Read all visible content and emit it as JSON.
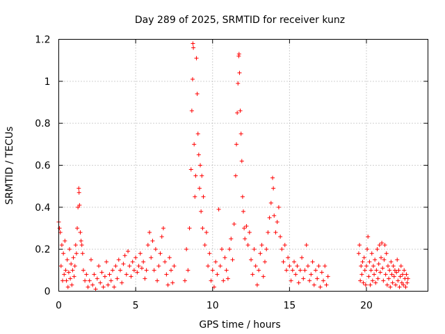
{
  "chart_data": {
    "type": "scatter",
    "title": "Day 289 of 2025, SRMTID for receiver kunz",
    "xlabel": "GPS time / hours",
    "ylabel": "SRMTID / TECUs",
    "xlim": [
      0,
      24
    ],
    "ylim": [
      0,
      1.2
    ],
    "x_ticks": [
      0,
      5,
      10,
      15,
      20
    ],
    "x_tick_labels": [
      "0",
      "5",
      "10",
      "15",
      "20"
    ],
    "y_ticks": [
      0,
      0.2,
      0.4,
      0.6,
      0.8,
      1.0,
      1.2
    ],
    "y_tick_labels": [
      "0",
      "0.2",
      "0.4",
      "0.6",
      "0.8",
      "1",
      "1.2"
    ],
    "grid": true,
    "marker": "+",
    "color": "#ff0000",
    "series": [
      {
        "name": "SRMTID",
        "points": [
          [
            0.0,
            0.33
          ],
          [
            0.05,
            0.3
          ],
          [
            0.1,
            0.28
          ],
          [
            0.15,
            0.12
          ],
          [
            0.2,
            0.22
          ],
          [
            0.25,
            0.05
          ],
          [
            0.3,
            0.18
          ],
          [
            0.35,
            0.08
          ],
          [
            0.4,
            0.24
          ],
          [
            0.45,
            0.1
          ],
          [
            0.5,
            0.05
          ],
          [
            0.55,
            0.15
          ],
          [
            0.6,
            0.02
          ],
          [
            0.65,
            0.09
          ],
          [
            0.7,
            0.2
          ],
          [
            0.75,
            0.06
          ],
          [
            0.8,
            0.13
          ],
          [
            0.85,
            0.03
          ],
          [
            0.9,
            0.1
          ],
          [
            0.95,
            0.16
          ],
          [
            1.0,
            0.07
          ],
          [
            1.05,
            0.12
          ],
          [
            1.1,
            0.22
          ],
          [
            1.15,
            0.18
          ],
          [
            1.2,
            0.3
          ],
          [
            1.25,
            0.4
          ],
          [
            1.3,
            0.49
          ],
          [
            1.32,
            0.47
          ],
          [
            1.35,
            0.41
          ],
          [
            1.4,
            0.28
          ],
          [
            1.45,
            0.24
          ],
          [
            1.5,
            0.22
          ],
          [
            1.55,
            0.18
          ],
          [
            1.6,
            0.1
          ],
          [
            1.7,
            0.05
          ],
          [
            1.8,
            0.08
          ],
          [
            1.9,
            0.02
          ],
          [
            2.0,
            0.05
          ],
          [
            2.1,
            0.15
          ],
          [
            2.2,
            0.03
          ],
          [
            2.3,
            0.08
          ],
          [
            2.4,
            0.01
          ],
          [
            2.5,
            0.06
          ],
          [
            2.6,
            0.12
          ],
          [
            2.7,
            0.04
          ],
          [
            2.8,
            0.09
          ],
          [
            2.9,
            0.02
          ],
          [
            3.0,
            0.07
          ],
          [
            3.1,
            0.14
          ],
          [
            3.2,
            0.03
          ],
          [
            3.3,
            0.08
          ],
          [
            3.4,
            0.05
          ],
          [
            3.5,
            0.1
          ],
          [
            3.6,
            0.02
          ],
          [
            3.7,
            0.12
          ],
          [
            3.8,
            0.06
          ],
          [
            3.9,
            0.15
          ],
          [
            4.0,
            0.1
          ],
          [
            4.1,
            0.04
          ],
          [
            4.2,
            0.13
          ],
          [
            4.3,
            0.17
          ],
          [
            4.4,
            0.08
          ],
          [
            4.5,
            0.19
          ],
          [
            4.6,
            0.12
          ],
          [
            4.7,
            0.07
          ],
          [
            4.8,
            0.14
          ],
          [
            4.9,
            0.1
          ],
          [
            5.0,
            0.16
          ],
          [
            5.1,
            0.09
          ],
          [
            5.2,
            0.12
          ],
          [
            5.3,
            0.18
          ],
          [
            5.4,
            0.11
          ],
          [
            5.5,
            0.14
          ],
          [
            5.6,
            0.06
          ],
          [
            5.7,
            0.1
          ],
          [
            5.8,
            0.22
          ],
          [
            5.9,
            0.28
          ],
          [
            6.0,
            0.16
          ],
          [
            6.1,
            0.24
          ],
          [
            6.2,
            0.1
          ],
          [
            6.3,
            0.2
          ],
          [
            6.4,
            0.05
          ],
          [
            6.5,
            0.12
          ],
          [
            6.6,
            0.18
          ],
          [
            6.7,
            0.26
          ],
          [
            6.8,
            0.3
          ],
          [
            6.9,
            0.14
          ],
          [
            7.0,
            0.08
          ],
          [
            7.1,
            0.03
          ],
          [
            7.2,
            0.16
          ],
          [
            7.3,
            0.1
          ],
          [
            7.4,
            0.04
          ],
          [
            7.5,
            0.12
          ],
          [
            8.2,
            0.05
          ],
          [
            8.3,
            0.2
          ],
          [
            8.4,
            0.1
          ],
          [
            8.5,
            0.3
          ],
          [
            8.6,
            0.58
          ],
          [
            8.65,
            0.86
          ],
          [
            8.7,
            1.01
          ],
          [
            8.72,
            1.18
          ],
          [
            8.75,
            1.16
          ],
          [
            8.8,
            0.7
          ],
          [
            8.85,
            0.45
          ],
          [
            8.9,
            0.55
          ],
          [
            8.95,
            1.11
          ],
          [
            9.0,
            0.94
          ],
          [
            9.05,
            0.75
          ],
          [
            9.1,
            0.65
          ],
          [
            9.15,
            0.49
          ],
          [
            9.2,
            0.6
          ],
          [
            9.25,
            0.38
          ],
          [
            9.3,
            0.55
          ],
          [
            9.35,
            0.3
          ],
          [
            9.4,
            0.45
          ],
          [
            9.5,
            0.22
          ],
          [
            9.6,
            0.28
          ],
          [
            9.7,
            0.12
          ],
          [
            9.8,
            0.18
          ],
          [
            9.9,
            0.05
          ],
          [
            10.0,
            0.1
          ],
          [
            10.1,
            0.02
          ],
          [
            10.2,
            0.14
          ],
          [
            10.3,
            0.08
          ],
          [
            10.4,
            0.39
          ],
          [
            10.5,
            0.12
          ],
          [
            10.6,
            0.2
          ],
          [
            10.7,
            0.05
          ],
          [
            10.8,
            0.16
          ],
          [
            10.9,
            0.1
          ],
          [
            11.0,
            0.06
          ],
          [
            11.1,
            0.2
          ],
          [
            11.2,
            0.25
          ],
          [
            11.3,
            0.15
          ],
          [
            11.4,
            0.32
          ],
          [
            11.5,
            0.55
          ],
          [
            11.55,
            0.7
          ],
          [
            11.6,
            0.85
          ],
          [
            11.65,
            0.99
          ],
          [
            11.7,
            1.12
          ],
          [
            11.72,
            1.13
          ],
          [
            11.75,
            1.04
          ],
          [
            11.8,
            0.86
          ],
          [
            11.85,
            0.75
          ],
          [
            11.9,
            0.62
          ],
          [
            11.95,
            0.45
          ],
          [
            12.0,
            0.38
          ],
          [
            12.05,
            0.3
          ],
          [
            12.1,
            0.25
          ],
          [
            12.2,
            0.31
          ],
          [
            12.3,
            0.22
          ],
          [
            12.4,
            0.28
          ],
          [
            12.5,
            0.15
          ],
          [
            12.6,
            0.08
          ],
          [
            12.7,
            0.2
          ],
          [
            12.8,
            0.12
          ],
          [
            12.9,
            0.03
          ],
          [
            13.0,
            0.1
          ],
          [
            13.1,
            0.18
          ],
          [
            13.2,
            0.22
          ],
          [
            13.3,
            0.07
          ],
          [
            13.4,
            0.14
          ],
          [
            13.5,
            0.2
          ],
          [
            13.6,
            0.28
          ],
          [
            13.7,
            0.35
          ],
          [
            13.8,
            0.42
          ],
          [
            13.9,
            0.54
          ],
          [
            13.95,
            0.49
          ],
          [
            14.0,
            0.36
          ],
          [
            14.1,
            0.28
          ],
          [
            14.2,
            0.33
          ],
          [
            14.3,
            0.4
          ],
          [
            14.4,
            0.26
          ],
          [
            14.5,
            0.2
          ],
          [
            14.6,
            0.14
          ],
          [
            14.7,
            0.22
          ],
          [
            14.8,
            0.1
          ],
          [
            14.9,
            0.16
          ],
          [
            15.0,
            0.12
          ],
          [
            15.1,
            0.05
          ],
          [
            15.2,
            0.1
          ],
          [
            15.3,
            0.14
          ],
          [
            15.4,
            0.08
          ],
          [
            15.5,
            0.12
          ],
          [
            15.6,
            0.04
          ],
          [
            15.7,
            0.1
          ],
          [
            15.8,
            0.16
          ],
          [
            15.9,
            0.06
          ],
          [
            16.0,
            0.1
          ],
          [
            16.1,
            0.22
          ],
          [
            16.2,
            0.12
          ],
          [
            16.3,
            0.05
          ],
          [
            16.4,
            0.08
          ],
          [
            16.5,
            0.14
          ],
          [
            16.6,
            0.03
          ],
          [
            16.7,
            0.1
          ],
          [
            16.8,
            0.06
          ],
          [
            16.9,
            0.12
          ],
          [
            17.0,
            0.02
          ],
          [
            17.1,
            0.09
          ],
          [
            17.2,
            0.05
          ],
          [
            17.3,
            0.12
          ],
          [
            17.4,
            0.03
          ],
          [
            17.5,
            0.07
          ],
          [
            19.5,
            0.18
          ],
          [
            19.55,
            0.22
          ],
          [
            19.6,
            0.05
          ],
          [
            19.65,
            0.12
          ],
          [
            19.7,
            0.08
          ],
          [
            19.75,
            0.14
          ],
          [
            19.8,
            0.04
          ],
          [
            19.85,
            0.16
          ],
          [
            19.9,
            0.1
          ],
          [
            19.95,
            0.03
          ],
          [
            20.0,
            0.12
          ],
          [
            20.05,
            0.2
          ],
          [
            20.1,
            0.26
          ],
          [
            20.15,
            0.07
          ],
          [
            20.2,
            0.14
          ],
          [
            20.25,
            0.03
          ],
          [
            20.3,
            0.1
          ],
          [
            20.35,
            0.18
          ],
          [
            20.4,
            0.05
          ],
          [
            20.45,
            0.12
          ],
          [
            20.5,
            0.08
          ],
          [
            20.55,
            0.15
          ],
          [
            20.6,
            0.04
          ],
          [
            20.65,
            0.1
          ],
          [
            20.7,
            0.2
          ],
          [
            20.75,
            0.06
          ],
          [
            20.8,
            0.13
          ],
          [
            20.85,
            0.22
          ],
          [
            20.9,
            0.09
          ],
          [
            20.95,
            0.16
          ],
          [
            21.0,
            0.23
          ],
          [
            21.05,
            0.11
          ],
          [
            21.1,
            0.05
          ],
          [
            21.15,
            0.15
          ],
          [
            21.2,
            0.22
          ],
          [
            21.25,
            0.08
          ],
          [
            21.3,
            0.18
          ],
          [
            21.35,
            0.03
          ],
          [
            21.4,
            0.12
          ],
          [
            21.45,
            0.06
          ],
          [
            21.5,
            0.1
          ],
          [
            21.55,
            0.02
          ],
          [
            21.6,
            0.14
          ],
          [
            21.65,
            0.08
          ],
          [
            21.7,
            0.04
          ],
          [
            21.75,
            0.12
          ],
          [
            21.8,
            0.07
          ],
          [
            21.85,
            0.1
          ],
          [
            21.9,
            0.03
          ],
          [
            21.95,
            0.09
          ],
          [
            22.0,
            0.15
          ],
          [
            22.05,
            0.05
          ],
          [
            22.1,
            0.1
          ],
          [
            22.15,
            0.02
          ],
          [
            22.2,
            0.07
          ],
          [
            22.25,
            0.12
          ],
          [
            22.3,
            0.04
          ],
          [
            22.35,
            0.08
          ],
          [
            22.4,
            0.03
          ],
          [
            22.45,
            0.1
          ],
          [
            22.5,
            0.06
          ],
          [
            22.55,
            0.02
          ],
          [
            22.6,
            0.08
          ],
          [
            22.65,
            0.04
          ],
          [
            22.7,
            0.06
          ]
        ]
      }
    ]
  }
}
